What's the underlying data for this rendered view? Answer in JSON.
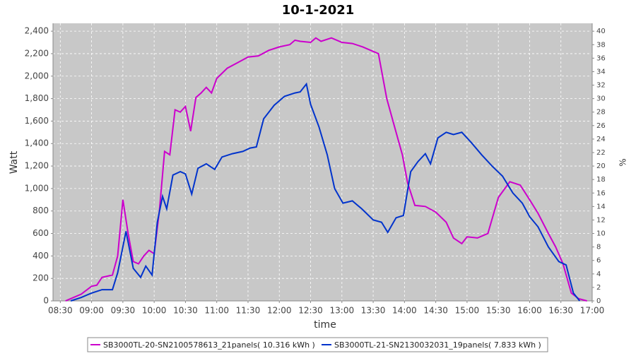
{
  "chart_data": {
    "type": "line",
    "title": "10-1-2021",
    "x_label": "time",
    "y_label": "Watt",
    "y2_label": "%",
    "xlim": [
      "08:23",
      "17:00"
    ],
    "xticks": [
      "08:30",
      "09:00",
      "09:30",
      "10:00",
      "10:30",
      "11:00",
      "11:30",
      "12:00",
      "12:30",
      "13:00",
      "13:30",
      "14:00",
      "14:30",
      "15:00",
      "15:30",
      "16:00",
      "16:30",
      "17:00"
    ],
    "ylim": [
      0,
      2470
    ],
    "yticks": [
      0,
      200,
      400,
      600,
      800,
      {
        "value": 1000,
        "label": "1,000"
      },
      {
        "value": 1200,
        "label": "1,200"
      },
      {
        "value": 1400,
        "label": "1,400"
      },
      {
        "value": 1600,
        "label": "1,600"
      },
      {
        "value": 1800,
        "label": "1,800"
      },
      {
        "value": 2000,
        "label": "2,000"
      },
      {
        "value": 2200,
        "label": "2,200"
      },
      {
        "value": 2400,
        "label": "2,400"
      }
    ],
    "y2lim": [
      0,
      41.17
    ],
    "y2ticks": [
      0,
      2,
      4,
      6,
      8,
      10,
      12,
      14,
      16,
      18,
      20,
      22,
      24,
      26,
      28,
      30,
      32,
      34,
      36,
      38,
      40
    ],
    "grid": true,
    "legend": "bottom",
    "series": [
      {
        "name": "SB3000TL-20-SN2100578613_21panels( 10.316 kWh )",
        "color": "#cc00cc",
        "x": [
          "08:35",
          "08:40",
          "08:50",
          "09:00",
          "09:05",
          "09:10",
          "09:20",
          "09:25",
          "09:30",
          "09:35",
          "09:40",
          "09:45",
          "09:50",
          "09:55",
          "10:00",
          "10:05",
          "10:10",
          "10:15",
          "10:20",
          "10:25",
          "10:30",
          "10:35",
          "10:40",
          "10:45",
          "10:50",
          "10:55",
          "11:00",
          "11:10",
          "11:20",
          "11:30",
          "11:40",
          "11:50",
          "12:00",
          "12:10",
          "12:15",
          "12:20",
          "12:30",
          "12:35",
          "12:40",
          "12:50",
          "13:00",
          "13:10",
          "13:20",
          "13:30",
          "13:35",
          "13:43",
          "13:52",
          "13:58",
          "14:03",
          "14:10",
          "14:20",
          "14:30",
          "14:40",
          "14:47",
          "14:55",
          "15:00",
          "15:10",
          "15:20",
          "15:30",
          "15:41",
          "15:51",
          "16:00",
          "16:08",
          "16:18",
          "16:25",
          "16:32",
          "16:40",
          "16:47",
          "16:55"
        ],
        "values": [
          0,
          20,
          60,
          130,
          140,
          210,
          230,
          400,
          900,
          600,
          350,
          330,
          400,
          450,
          420,
          800,
          1330,
          1300,
          1700,
          1680,
          1730,
          1510,
          1810,
          1850,
          1900,
          1850,
          1980,
          2070,
          2120,
          2170,
          2180,
          2230,
          2260,
          2280,
          2320,
          2310,
          2300,
          2340,
          2310,
          2340,
          2300,
          2290,
          2260,
          2220,
          2200,
          1800,
          1500,
          1300,
          1050,
          850,
          840,
          790,
          700,
          560,
          510,
          570,
          560,
          600,
          920,
          1060,
          1030,
          900,
          780,
          600,
          480,
          330,
          70,
          20,
          0
        ]
      },
      {
        "name": "SB3000TL-21-SN2130032031_19panels( 7.833 kWh )",
        "color": "#0033cc",
        "x": [
          "08:40",
          "08:50",
          "09:00",
          "09:10",
          "09:20",
          "09:25",
          "09:33",
          "09:40",
          "09:47",
          "09:52",
          "09:58",
          "10:03",
          "10:08",
          "10:12",
          "10:18",
          "10:25",
          "10:30",
          "10:36",
          "10:42",
          "10:50",
          "10:58",
          "11:05",
          "11:15",
          "11:25",
          "11:32",
          "11:38",
          "11:45",
          "11:55",
          "12:05",
          "12:15",
          "12:20",
          "12:26",
          "12:30",
          "12:38",
          "12:46",
          "12:53",
          "13:01",
          "13:10",
          "13:19",
          "13:30",
          "13:38",
          "13:44",
          "13:52",
          "13:59",
          "14:06",
          "14:13",
          "14:20",
          "14:25",
          "14:32",
          "14:40",
          "14:47",
          "14:55",
          "15:04",
          "15:14",
          "15:24",
          "15:34",
          "15:44",
          "15:53",
          "16:00",
          "16:08",
          "16:18",
          "16:28",
          "16:35",
          "16:42",
          "16:48"
        ],
        "values": [
          0,
          30,
          70,
          100,
          100,
          250,
          620,
          290,
          210,
          310,
          230,
          700,
          930,
          820,
          1120,
          1150,
          1130,
          950,
          1180,
          1220,
          1170,
          1280,
          1310,
          1330,
          1360,
          1370,
          1620,
          1740,
          1820,
          1850,
          1860,
          1930,
          1750,
          1550,
          1300,
          1000,
          870,
          890,
          820,
          720,
          700,
          610,
          740,
          760,
          1150,
          1240,
          1310,
          1220,
          1450,
          1500,
          1480,
          1500,
          1410,
          1300,
          1200,
          1110,
          960,
          870,
          750,
          660,
          480,
          350,
          320,
          70,
          0
        ]
      }
    ]
  }
}
